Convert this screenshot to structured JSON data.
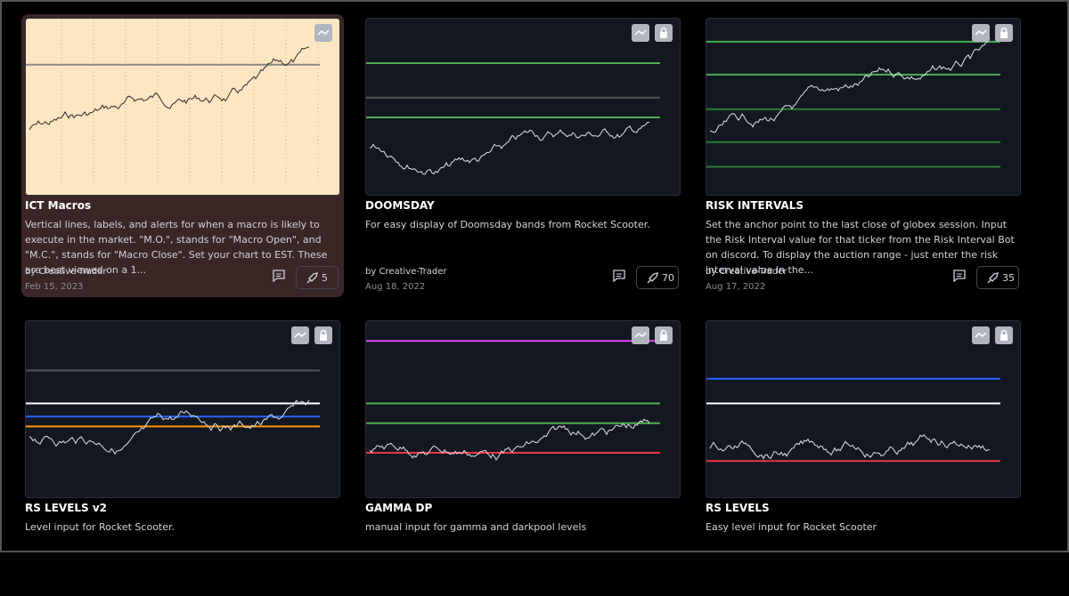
{
  "cards": [
    {
      "title": "ICT Macros",
      "description": "Vertical lines, labels, and alerts for when a macro is likely to execute in the market. \"M.O.\", stands for \"Macro Open\", and \"M.C.\", stands for \"Macro Close\". Set your chart to EST. These are best viewed on a 1...",
      "author": "by Creative-Trader",
      "date": "Feb 15, 2023",
      "boosts": 5
    },
    {
      "title": "DOOMSDAY",
      "description": "For easy display of Doomsday bands from Rocket Scooter.",
      "author": "by Creative-Trader",
      "date": "Aug 18, 2022",
      "boosts": 70
    },
    {
      "title": "RISK INTERVALS",
      "description": "Set the anchor point to the last close of globex session. Input the Risk Interval value for that ticker from the Risk Interval Bot on discord. To display the auction range - just enter the risk interval value in the...",
      "author": "by Creative-Trader",
      "date": "Aug 17, 2022",
      "boosts": 35
    },
    {
      "title": "RS LEVELS v2",
      "description": "Level input for Rocket Scooter."
    },
    {
      "title": "GAMMA DP",
      "description": "manual input for gamma and darkpool levels"
    },
    {
      "title": "RS LEVELS",
      "description": "Easy level input for Rocket Scooter"
    }
  ]
}
